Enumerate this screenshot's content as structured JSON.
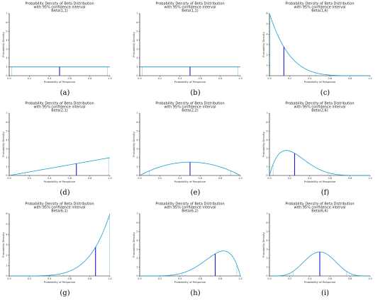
{
  "colors": {
    "curve": "#1f9bd1",
    "mean_line": "#1a1adb",
    "ci_line": "#1f9bd1",
    "axis": "#000000",
    "text": "#222222"
  },
  "chart_data": [
    {
      "id": "a",
      "type": "line",
      "alpha": 1,
      "beta": 1,
      "title_lines": [
        "Probability Density of Beta Distribution",
        "with 95% confidence interval",
        "Beta(1,1)"
      ],
      "xlabel": "Probability of Response",
      "ylabel": "Probability Density",
      "xlim": [
        0,
        1
      ],
      "ylim": [
        0,
        7
      ],
      "xticks": [
        "0.0",
        "0.2",
        "0.4",
        "0.6",
        "0.8",
        "1.0"
      ],
      "yticks": [
        "0",
        "1",
        "2",
        "3",
        "4",
        "5",
        "6",
        "7"
      ],
      "mean": 0.5,
      "ci": [
        0.025,
        0.975
      ],
      "caption": "(a)"
    },
    {
      "id": "b",
      "type": "line",
      "alpha": 1,
      "beta": 1,
      "title_lines": [
        "Probability Density of Beta Distribution",
        "with 95% confidence interval",
        "Beta(1,1)"
      ],
      "xlabel": "Probability of Response",
      "ylabel": "Probability Density",
      "xlim": [
        0,
        1
      ],
      "ylim": [
        0,
        7
      ],
      "xticks": [
        "0.0",
        "0.2",
        "0.4",
        "0.6",
        "0.8",
        "1.0"
      ],
      "yticks": [
        "0",
        "1",
        "2",
        "3",
        "4",
        "5",
        "6",
        "7"
      ],
      "mean": 0.5,
      "ci": [
        0.025,
        0.975
      ],
      "caption": "(b)"
    },
    {
      "id": "c",
      "type": "line",
      "alpha": 1,
      "beta": 6,
      "title_lines": [
        "Probability Density of Beta Distribution",
        "with 95% confidence interval",
        "Beta(1,6)"
      ],
      "xlabel": "Probability of Response",
      "ylabel": "Probability Density",
      "xlim": [
        0,
        1
      ],
      "ylim": [
        0,
        6
      ],
      "xticks": [
        "0.0",
        "0.2",
        "0.4",
        "0.6",
        "0.8",
        "1.0"
      ],
      "yticks": [
        "0",
        "1",
        "2",
        "3",
        "4",
        "5",
        "6"
      ],
      "mean": 0.143,
      "ci": [
        0.004,
        0.459
      ],
      "caption": "(c)"
    },
    {
      "id": "d",
      "type": "line",
      "alpha": 2,
      "beta": 1,
      "title_lines": [
        "Probability Density of Beta Distribution",
        "with 95% confidence interval",
        "Beta(2,1)"
      ],
      "xlabel": "Probability of Response",
      "ylabel": "Probability Density",
      "xlim": [
        0,
        1
      ],
      "ylim": [
        0,
        7
      ],
      "xticks": [
        "0.0",
        "0.2",
        "0.4",
        "0.6",
        "0.8",
        "1.0"
      ],
      "yticks": [
        "0",
        "1",
        "2",
        "3",
        "4",
        "5",
        "6",
        "7"
      ],
      "mean": 0.667,
      "ci": [
        0.158,
        0.987
      ],
      "caption": "(d)"
    },
    {
      "id": "e",
      "type": "line",
      "alpha": 2,
      "beta": 2,
      "title_lines": [
        "Probability Density of Beta Distribution",
        "with 95% confidence interval",
        "Beta(2,2)"
      ],
      "xlabel": "Probability of Response",
      "ylabel": "Probability Density",
      "xlim": [
        0,
        1
      ],
      "ylim": [
        0,
        7
      ],
      "xticks": [
        "0.0",
        "0.2",
        "0.4",
        "0.6",
        "0.8",
        "1.0"
      ],
      "yticks": [
        "0",
        "1",
        "2",
        "3",
        "4",
        "5",
        "6",
        "7"
      ],
      "mean": 0.5,
      "ci": [
        0.094,
        0.906
      ],
      "caption": "(e)"
    },
    {
      "id": "f",
      "type": "line",
      "alpha": 2,
      "beta": 6,
      "title_lines": [
        "Probability Density of Beta Distribution",
        "with 95% confidence interval",
        "Beta(2,6)"
      ],
      "xlabel": "Probability of Response",
      "ylabel": "Probability Density",
      "xlim": [
        0,
        1
      ],
      "ylim": [
        0,
        7
      ],
      "xticks": [
        "0.0",
        "0.2",
        "0.4",
        "0.6",
        "0.8",
        "1.0"
      ],
      "yticks": [
        "0",
        "1",
        "2",
        "3",
        "4",
        "5",
        "6",
        "7"
      ],
      "mean": 0.25,
      "ci": [
        0.036,
        0.579
      ],
      "caption": "(f)"
    },
    {
      "id": "g",
      "type": "line",
      "alpha": 6,
      "beta": 1,
      "title_lines": [
        "Probability Density of Beta Distribution",
        "with 95% confidence interval",
        "Beta(6,1)"
      ],
      "xlabel": "Probability of Response",
      "ylabel": "Probability Density",
      "xlim": [
        0,
        1
      ],
      "ylim": [
        0,
        6
      ],
      "xticks": [
        "0.0",
        "0.2",
        "0.4",
        "0.6",
        "0.8",
        "1.0"
      ],
      "yticks": [
        "0",
        "1",
        "2",
        "3",
        "4",
        "5",
        "6"
      ],
      "mean": 0.857,
      "ci": [
        0.541,
        0.996
      ],
      "caption": "(g)"
    },
    {
      "id": "h",
      "type": "line",
      "alpha": 6,
      "beta": 2,
      "title_lines": [
        "Probability Density of Beta Distribution",
        "with 95% confidence interval",
        "Beta(6,2)"
      ],
      "xlabel": "Probability of Response",
      "ylabel": "Probability Density",
      "xlim": [
        0,
        1
      ],
      "ylim": [
        0,
        7
      ],
      "xticks": [
        "0.0",
        "0.2",
        "0.4",
        "0.6",
        "0.8",
        "1.0"
      ],
      "yticks": [
        "0",
        "1",
        "2",
        "3",
        "4",
        "5",
        "6",
        "7"
      ],
      "mean": 0.75,
      "ci": [
        0.421,
        0.964
      ],
      "caption": "(h)"
    },
    {
      "id": "i",
      "type": "line",
      "alpha": 6,
      "beta": 6,
      "title_lines": [
        "Probability Density of Beta Distribution",
        "with 95% confidence interval",
        "Beta(6,6)"
      ],
      "xlabel": "Probability of Response",
      "ylabel": "Probability Density",
      "xlim": [
        0,
        1
      ],
      "ylim": [
        0,
        7
      ],
      "xticks": [
        "0.0",
        "0.2",
        "0.4",
        "0.6",
        "0.8",
        "1.0"
      ],
      "yticks": [
        "0",
        "1",
        "2",
        "3",
        "4",
        "5",
        "6",
        "7"
      ],
      "mean": 0.5,
      "ci": [
        0.234,
        0.766
      ],
      "caption": "(i)"
    }
  ]
}
